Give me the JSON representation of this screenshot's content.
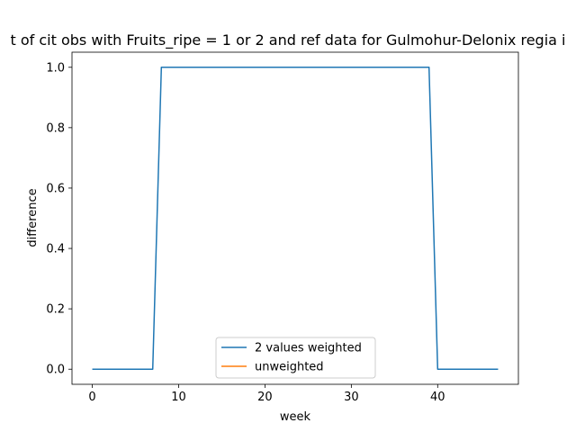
{
  "chart_data": {
    "type": "line",
    "title": "t of cit obs with Fruits_ripe = 1 or 2 and ref data for Gulmohur-Delonix regia i",
    "xlabel": "week",
    "ylabel": "difference",
    "xlim": [
      -2.35,
      49.35
    ],
    "ylim": [
      -0.05,
      1.05
    ],
    "xticks": [
      0,
      10,
      20,
      30,
      40
    ],
    "yticks": [
      0.0,
      0.2,
      0.4,
      0.6,
      0.8,
      1.0
    ],
    "xtick_labels": [
      "0",
      "10",
      "20",
      "30",
      "40"
    ],
    "ytick_labels": [
      "0.0",
      "0.2",
      "0.4",
      "0.6",
      "0.8",
      "1.0"
    ],
    "grid": false,
    "legend_position": "lower center",
    "series": [
      {
        "name": "2 values weighted",
        "color": "#1f77b4",
        "x": [
          0,
          7,
          8,
          39,
          40,
          47
        ],
        "y": [
          0,
          0,
          1,
          1,
          0,
          0
        ]
      },
      {
        "name": "unweighted",
        "color": "#ff7f0e",
        "x": [],
        "y": []
      }
    ]
  }
}
